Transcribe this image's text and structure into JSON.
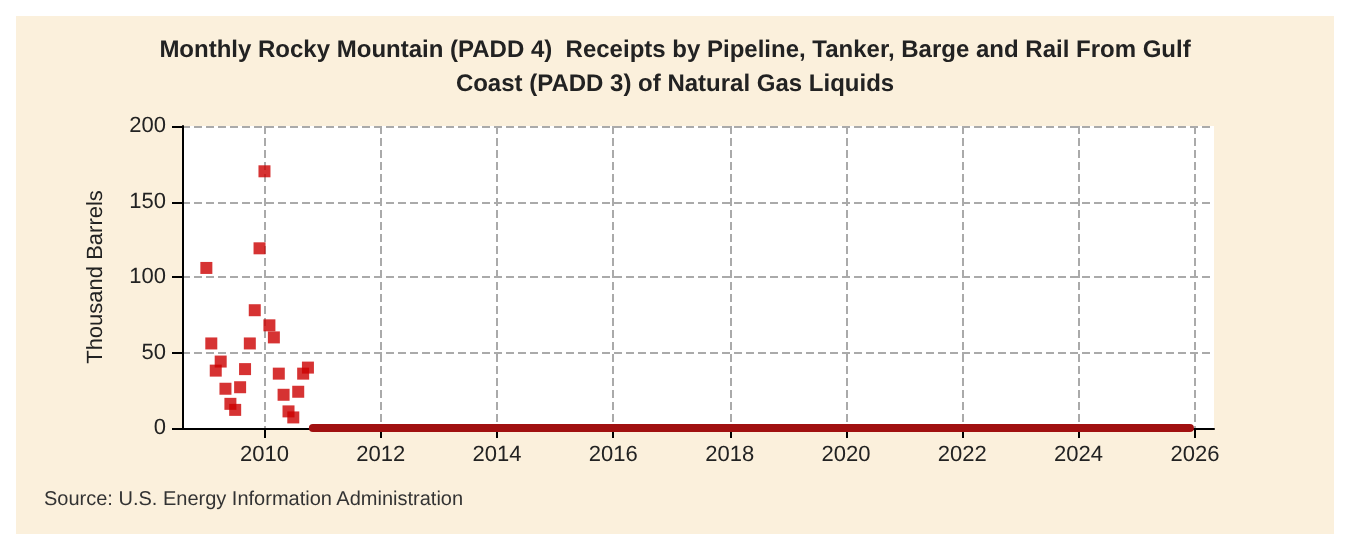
{
  "chart_data": {
    "type": "scatter",
    "title": "Monthly Rocky Mountain (PADD 4)  Receipts by Pipeline, Tanker, Barge and Rail From Gulf\nCoast (PADD 3) of Natural Gas Liquids",
    "ylabel": "Thousand Barrels",
    "annotations": [
      "Source: U.S. Energy Information Administration"
    ],
    "series": [
      {
        "color": "#cc0000",
        "marker": "square",
        "x": [
          "2009-01",
          "2009-02",
          "2009-03",
          "2009-04",
          "2009-05",
          "2009-06",
          "2009-07",
          "2009-08",
          "2009-09",
          "2009-10",
          "2009-11",
          "2009-12",
          "2010-01",
          "2010-02",
          "2010-03",
          "2010-04",
          "2010-05",
          "2010-06",
          "2010-07",
          "2010-08",
          "2010-09",
          "2010-10"
        ],
        "values": [
          106,
          56,
          38,
          44,
          26,
          16,
          12,
          27,
          39,
          56,
          78,
          119,
          170,
          68,
          60,
          36,
          22,
          11,
          7,
          24,
          36,
          40
        ]
      },
      {
        "type": "line",
        "color": "#a01010",
        "x": [
          "2010-11",
          "2025-12"
        ],
        "values": [
          0,
          0
        ],
        "marker": "none"
      }
    ],
    "xlim": [
      "2008-08",
      "2026-05"
    ],
    "xticks": [
      {
        "value": "2010",
        "label": "2010"
      },
      {
        "value": "2012",
        "label": "2012"
      },
      {
        "value": "2014",
        "label": "2014"
      },
      {
        "value": "2016",
        "label": "2016"
      },
      {
        "value": "2018",
        "label": "2018"
      },
      {
        "value": "2020",
        "label": "2020"
      },
      {
        "value": "2022",
        "label": "2022"
      },
      {
        "value": "2024",
        "label": "2024"
      },
      {
        "value": "2026",
        "label": "2026"
      }
    ],
    "ylim": [
      0,
      200
    ],
    "yticks": [
      0,
      50,
      100,
      150,
      200
    ],
    "grid": true
  }
}
